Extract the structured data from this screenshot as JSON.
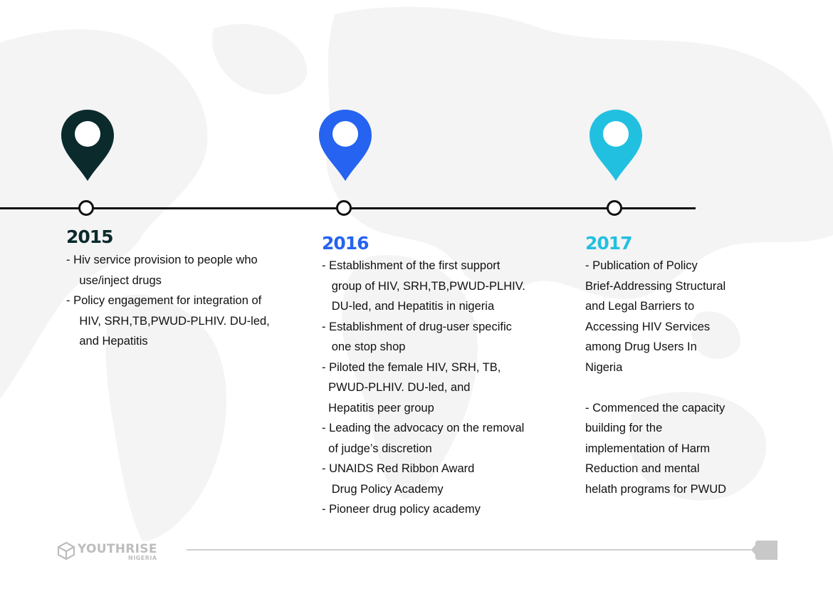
{
  "timeline": [
    {
      "year": "2015",
      "color": "#0b2a2c",
      "items": [
        "- Hiv service provision to people who",
        "    use/inject drugs",
        "- Policy engagement for integration of",
        "    HIV, SRH,TB,PWUD-PLHIV. DU-led,",
        "    and Hepatitis"
      ]
    },
    {
      "year": "2016",
      "color": "#2563f0",
      "items": [
        "- Establishment of the first support",
        "   group of HIV, SRH,TB,PWUD-PLHIV.",
        "   DU-led, and Hepatitis in nigeria",
        "- Establishment of drug-user specific",
        "   one stop shop",
        "- Piloted the female HIV, SRH, TB,",
        "  PWUD-PLHIV. DU-led, and",
        "  Hepatitis peer group",
        "- Leading the advocacy on the removal",
        "  of judge’s discretion",
        "- UNAIDS Red Ribbon Award",
        "   Drug Policy Academy",
        "- Pioneer drug policy academy"
      ]
    },
    {
      "year": "2017",
      "color": "#22c0e0",
      "items": [
        "- Publication of Policy",
        "Brief-Addressing Structural",
        "and Legal Barriers to",
        "Accessing HIV Services",
        "among Drug Users In",
        "Nigeria",
        "",
        "- Commenced the capacity",
        "building for the",
        "implementation of Harm",
        "Reduction and mental",
        "helath programs for PWUD"
      ]
    }
  ],
  "footer": {
    "logo_name": "YOUTHRISE",
    "logo_sub": "NIGERIA",
    "icon": "cube-icon"
  },
  "pin_icon": "location-pin-icon"
}
